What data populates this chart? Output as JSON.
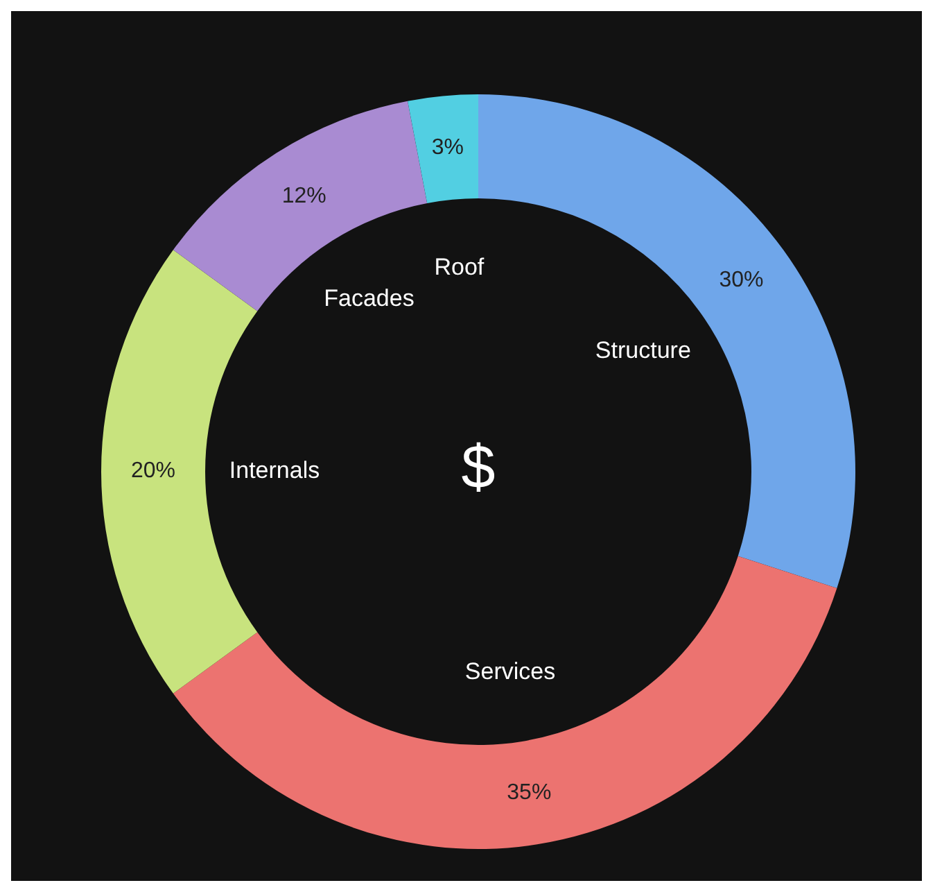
{
  "chart_data": {
    "type": "donut",
    "categories": [
      "Structure",
      "Services",
      "Internals",
      "Facades",
      "Roof"
    ],
    "values": [
      30,
      35,
      20,
      12,
      3
    ],
    "value_labels": [
      "30%",
      "35%",
      "20%",
      "12%",
      "3%"
    ],
    "colors": [
      "#6fa6ea",
      "#ec7370",
      "#c8e37e",
      "#a98bd2",
      "#52cfe2"
    ],
    "annotations": [
      "$"
    ]
  }
}
